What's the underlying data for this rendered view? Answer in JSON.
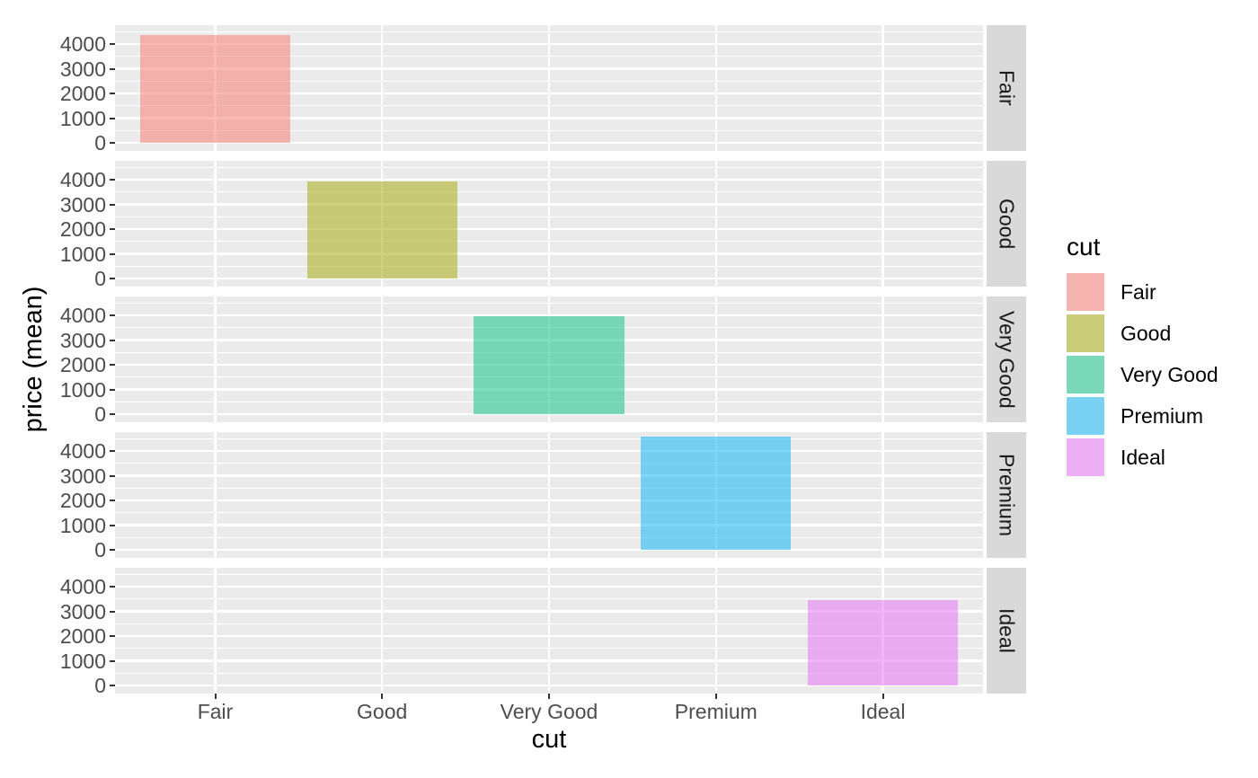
{
  "chart_data": {
    "type": "bar",
    "title": "",
    "xlabel": "cut",
    "ylabel": "price (mean)",
    "categories": [
      "Fair",
      "Good",
      "Very Good",
      "Premium",
      "Ideal"
    ],
    "values": [
      4358.76,
      3928.86,
      3981.76,
      4584.26,
      3457.54
    ],
    "facet_labels": [
      "Fair",
      "Good",
      "Very Good",
      "Premium",
      "Ideal"
    ],
    "y_major_ticks": [
      0,
      1000,
      2000,
      3000,
      4000
    ],
    "y_minor_ticks": [
      500,
      1500,
      2500,
      3500,
      4500
    ],
    "ylim": [
      -327,
      4763
    ],
    "bar_alpha": 0.5,
    "bar_rel_width": 0.9,
    "colors": [
      "#F8766D",
      "#A3A500",
      "#00BF7D",
      "#00B0F6",
      "#E76BF3"
    ],
    "legend": {
      "title": "cut",
      "entries": [
        {
          "label": "Fair",
          "color": "#F8766D"
        },
        {
          "label": "Good",
          "color": "#A3A500"
        },
        {
          "label": "Very Good",
          "color": "#00BF7D"
        },
        {
          "label": "Premium",
          "color": "#00B0F6"
        },
        {
          "label": "Ideal",
          "color": "#E76BF3"
        }
      ]
    },
    "theme": {
      "panel_bg": "#EBEBEB",
      "grid_color": "#FFFFFF",
      "strip_bg": "#D9D9D9",
      "tick_label_color": "#4D4D4D",
      "tick_mark_color": "#333333",
      "axis_title_color": "#000000",
      "strip_text_color": "#1A1A1A"
    }
  }
}
